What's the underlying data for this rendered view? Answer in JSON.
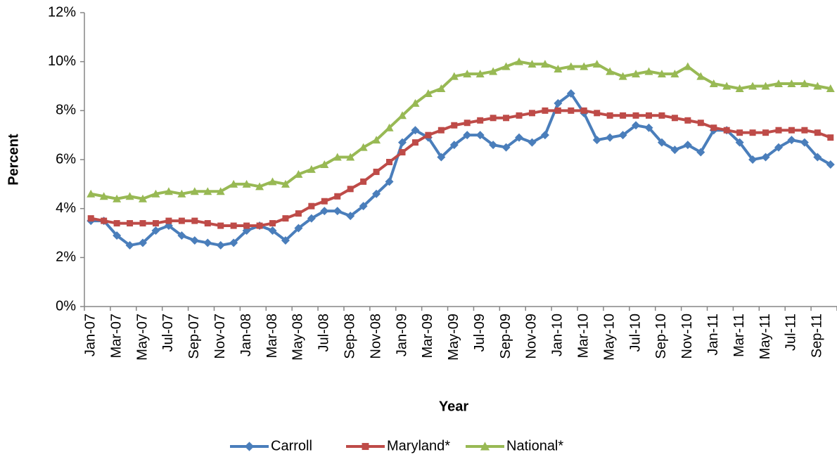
{
  "chart_data": {
    "type": "line",
    "x_label": "Year",
    "y_label": "Percent",
    "categories": [
      "Jan-07",
      null,
      "Mar-07",
      null,
      "May-07",
      null,
      "Jul-07",
      null,
      "Sep-07",
      null,
      "Nov-07",
      null,
      "Jan-08",
      null,
      "Mar-08",
      null,
      "May-08",
      null,
      "Jul-08",
      null,
      "Sep-08",
      null,
      "Nov-08",
      null,
      "Jan-09",
      null,
      "Mar-09",
      null,
      "May-09",
      null,
      "Jul-09",
      null,
      "Sep-09",
      null,
      "Nov-09",
      null,
      "Jan-10",
      null,
      "Mar-10",
      null,
      "May-10",
      null,
      "Jul-10",
      null,
      "Sep-10",
      null,
      "Nov-10",
      null,
      "Jan-11",
      null,
      "Mar-11",
      null,
      "May-11",
      null,
      "Jul-11",
      null,
      "Sep-11",
      null
    ],
    "series": [
      {
        "name": "Carroll",
        "color": "#4a7ebb",
        "marker": "diamond",
        "values": [
          3.5,
          3.5,
          2.9,
          2.5,
          2.6,
          3.1,
          3.3,
          2.9,
          2.7,
          2.6,
          2.5,
          2.6,
          3.1,
          3.3,
          3.1,
          2.7,
          3.2,
          3.6,
          3.9,
          3.9,
          3.7,
          4.1,
          4.6,
          5.1,
          6.7,
          7.2,
          6.9,
          6.1,
          6.6,
          7.0,
          7.0,
          6.6,
          6.5,
          6.9,
          6.7,
          7.0,
          8.3,
          8.7,
          7.9,
          6.8,
          6.9,
          7.0,
          7.4,
          7.3,
          6.7,
          6.4,
          6.6,
          6.3,
          7.2,
          7.2,
          6.7,
          6.0,
          6.1,
          6.5,
          6.8,
          6.7,
          6.1,
          5.8
        ]
      },
      {
        "name": "Maryland*",
        "color": "#be4b48",
        "marker": "square",
        "values": [
          3.6,
          3.5,
          3.4,
          3.4,
          3.4,
          3.4,
          3.5,
          3.5,
          3.5,
          3.4,
          3.3,
          3.3,
          3.3,
          3.3,
          3.4,
          3.6,
          3.8,
          4.1,
          4.3,
          4.5,
          4.8,
          5.1,
          5.5,
          5.9,
          6.3,
          6.7,
          7.0,
          7.2,
          7.4,
          7.5,
          7.6,
          7.7,
          7.7,
          7.8,
          7.9,
          8.0,
          8.0,
          8.0,
          8.0,
          7.9,
          7.8,
          7.8,
          7.8,
          7.8,
          7.8,
          7.7,
          7.6,
          7.5,
          7.3,
          7.2,
          7.1,
          7.1,
          7.1,
          7.2,
          7.2,
          7.2,
          7.1,
          6.9
        ]
      },
      {
        "name": "National*",
        "color": "#98b954",
        "marker": "triangle",
        "values": [
          4.6,
          4.5,
          4.4,
          4.5,
          4.4,
          4.6,
          4.7,
          4.6,
          4.7,
          4.7,
          4.7,
          5.0,
          5.0,
          4.9,
          5.1,
          5.0,
          5.4,
          5.6,
          5.8,
          6.1,
          6.1,
          6.5,
          6.8,
          7.3,
          7.8,
          8.3,
          8.7,
          8.9,
          9.4,
          9.5,
          9.5,
          9.6,
          9.8,
          10.0,
          9.9,
          9.9,
          9.7,
          9.8,
          9.8,
          9.9,
          9.6,
          9.4,
          9.5,
          9.6,
          9.5,
          9.5,
          9.8,
          9.4,
          9.1,
          9.0,
          8.9,
          9.0,
          9.0,
          9.1,
          9.1,
          9.1,
          9.0,
          8.9
        ]
      }
    ],
    "ylim": [
      0,
      12
    ],
    "yticks": [
      {
        "value": 0,
        "label": "0%"
      },
      {
        "value": 2,
        "label": "2%"
      },
      {
        "value": 4,
        "label": "4%"
      },
      {
        "value": 6,
        "label": "6%"
      },
      {
        "value": 8,
        "label": "8%"
      },
      {
        "value": 10,
        "label": "10%"
      },
      {
        "value": 12,
        "label": "12%"
      }
    ],
    "legend": "bottom"
  }
}
